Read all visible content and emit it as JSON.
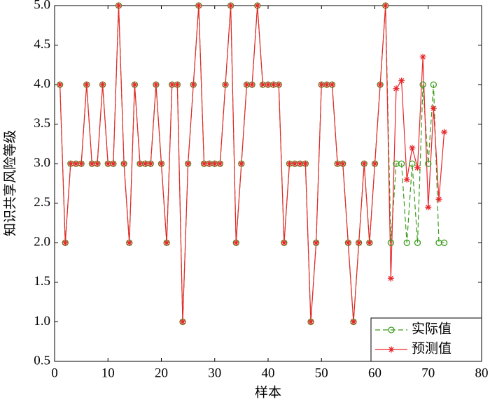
{
  "chart_data": {
    "type": "line",
    "xlabel": "样本",
    "ylabel": "知识共享风险等级",
    "x": [
      1,
      2,
      3,
      4,
      5,
      6,
      7,
      8,
      9,
      10,
      11,
      12,
      13,
      14,
      15,
      16,
      17,
      18,
      19,
      20,
      21,
      22,
      23,
      24,
      25,
      26,
      27,
      28,
      29,
      30,
      31,
      32,
      33,
      34,
      35,
      36,
      37,
      38,
      39,
      40,
      41,
      42,
      43,
      44,
      45,
      46,
      47,
      48,
      49,
      50,
      51,
      52,
      53,
      54,
      55,
      56,
      57,
      58,
      59,
      60,
      61,
      62,
      63,
      64,
      65,
      66,
      67,
      68,
      69,
      70,
      71,
      72,
      73
    ],
    "series": [
      {
        "name": "实际值",
        "color": "#3a9a1a",
        "marker": "circle",
        "dashed": true,
        "values": [
          4,
          2,
          3,
          3,
          3,
          4,
          3,
          3,
          4,
          3,
          3,
          5,
          3,
          2,
          4,
          3,
          3,
          3,
          4,
          3,
          2,
          4,
          4,
          1,
          3,
          4,
          5,
          3,
          3,
          3,
          3,
          4,
          5,
          2,
          3,
          4,
          4,
          5,
          4,
          4,
          4,
          4,
          2,
          3,
          3,
          3,
          3,
          1,
          2,
          4,
          4,
          4,
          3,
          3,
          2,
          1,
          2,
          3,
          2,
          3,
          4,
          5,
          2,
          3,
          3,
          2,
          3,
          2,
          4,
          3,
          4,
          2,
          2
        ]
      },
      {
        "name": "预测值",
        "color": "#e8262a",
        "marker": "star",
        "dashed": false,
        "values": [
          4,
          2,
          3,
          3,
          3,
          4,
          3,
          3,
          4,
          3,
          3,
          5,
          3,
          2,
          4,
          3,
          3,
          3,
          4,
          3,
          2,
          4,
          4,
          1,
          3,
          4,
          5,
          3,
          3,
          3,
          3,
          4,
          5,
          2,
          3,
          4,
          4,
          5,
          4,
          4,
          4,
          4,
          2,
          3,
          3,
          3,
          3,
          1,
          2,
          4,
          4,
          4,
          3,
          3,
          2,
          1,
          2,
          3,
          2,
          3,
          4,
          5,
          1.55,
          3.95,
          4.05,
          2.8,
          3.2,
          2.95,
          4.35,
          2.45,
          3.7,
          2.55,
          3.4
        ]
      }
    ],
    "xlim": [
      0,
      80
    ],
    "xticks": [
      0,
      10,
      20,
      30,
      40,
      50,
      60,
      70,
      80
    ],
    "ylim": [
      0.5,
      5.0
    ],
    "yticks": [
      0.5,
      {
        "value": 1,
        "label": "1.0"
      },
      1.5,
      {
        "value": 2,
        "label": "2.0"
      },
      2.5,
      {
        "value": 3,
        "label": "3.0"
      },
      3.5,
      {
        "value": 4,
        "label": "4.0"
      },
      4.5,
      {
        "value": 5,
        "label": "5.0"
      }
    ],
    "legend": "lower right"
  }
}
